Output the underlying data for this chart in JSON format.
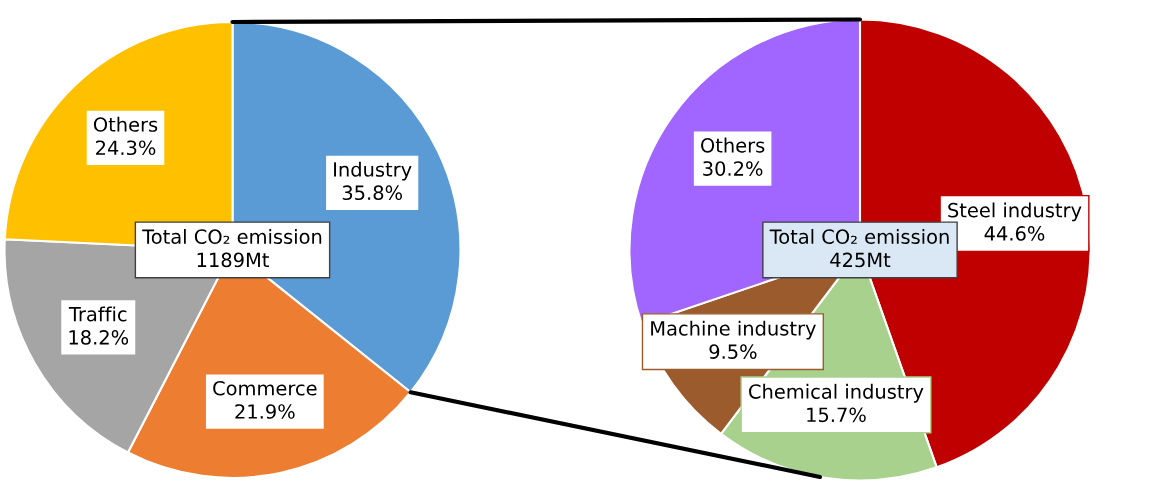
{
  "chart_data": [
    {
      "type": "pie",
      "categories": [
        "Industry",
        "Commerce",
        "Traffic",
        "Others"
      ],
      "values": [
        35.8,
        21.9,
        18.2,
        24.3
      ],
      "value_labels": [
        "35.8%",
        "21.9%",
        "18.2%",
        "24.3%"
      ],
      "colors": [
        "#5b9bd5",
        "#ed7d31",
        "#a5a5a5",
        "#ffc000"
      ],
      "annotations": [
        "Total CO₂ emission\n1189Mt"
      ],
      "legend": false
    },
    {
      "type": "pie",
      "categories": [
        "Steel industry",
        "Chemical industry",
        "Machine industry",
        "Others"
      ],
      "values": [
        44.6,
        15.7,
        9.5,
        30.2
      ],
      "value_labels": [
        "44.6%",
        "15.7%",
        "9.5%",
        "30.2%"
      ],
      "colors": [
        "#c00000",
        "#a9d18e",
        "#9c5b2c",
        "#a066ff"
      ],
      "annotations": [
        "Total CO₂ emission\n425Mt"
      ],
      "legend": false
    }
  ]
}
